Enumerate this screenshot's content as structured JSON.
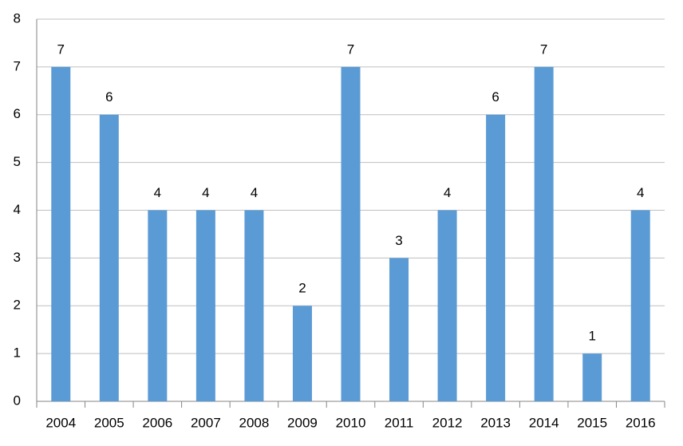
{
  "chart_data": {
    "type": "bar",
    "categories": [
      "2004",
      "2005",
      "2006",
      "2007",
      "2008",
      "2009",
      "2010",
      "2011",
      "2012",
      "2013",
      "2014",
      "2015",
      "2016"
    ],
    "values": [
      7,
      6,
      4,
      4,
      4,
      2,
      7,
      3,
      4,
      6,
      7,
      1,
      4
    ],
    "color": "#5b9bd5",
    "ylim": [
      0,
      8
    ],
    "yticks": [
      0,
      1,
      2,
      3,
      4,
      5,
      6,
      7,
      8
    ],
    "grid": true,
    "data_labels": true
  }
}
